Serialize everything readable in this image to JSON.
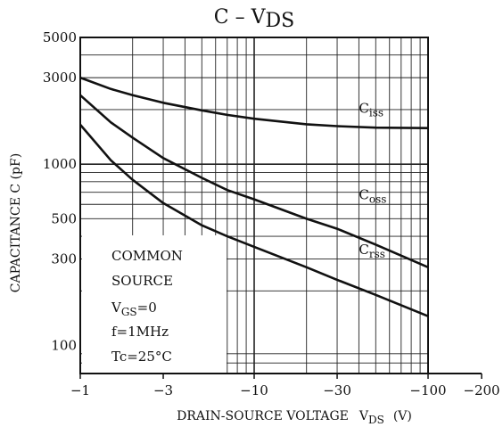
{
  "chart_data": {
    "type": "line",
    "title": "C – VDS",
    "title_main": "C",
    "title_dash": "–",
    "title_var": "V",
    "title_sub": "DS",
    "xlabel_text": "DRAIN-SOURCE VOLTAGE",
    "xlabel_var": "V",
    "xlabel_sub": "DS",
    "xlabel_unit": "(V)",
    "ylabel": "CAPACITANCE  C   (pF)",
    "x_scale": "log",
    "y_scale": "log",
    "x_quantity": "-VDS",
    "xlim": [
      1,
      200
    ],
    "ylim": [
      70,
      5000
    ],
    "x_ticks": [
      {
        "value": 1,
        "label": "−1"
      },
      {
        "value": 3,
        "label": "−3"
      },
      {
        "value": 10,
        "label": "−10"
      },
      {
        "value": 30,
        "label": "−30"
      },
      {
        "value": 100,
        "label": "−100"
      },
      {
        "value": 200,
        "label": "−200"
      }
    ],
    "y_ticks": [
      {
        "value": 100,
        "label": "100"
      },
      {
        "value": 300,
        "label": "300"
      },
      {
        "value": 500,
        "label": "500"
      },
      {
        "value": 1000,
        "label": "1000"
      },
      {
        "value": 3000,
        "label": "3000"
      },
      {
        "value": 5000,
        "label": "5000"
      }
    ],
    "grid": true,
    "series": [
      {
        "name": "Ciss",
        "label_main": "C",
        "label_sub": "iss",
        "x": [
          1,
          1.5,
          2,
          3,
          5,
          7,
          10,
          20,
          30,
          50,
          100
        ],
        "y": [
          3000,
          2600,
          2400,
          2180,
          1980,
          1870,
          1780,
          1660,
          1620,
          1590,
          1580
        ]
      },
      {
        "name": "Coss",
        "label_main": "C",
        "label_sub": "oss",
        "x": [
          1,
          1.5,
          2,
          3,
          5,
          7,
          10,
          20,
          30,
          50,
          100
        ],
        "y": [
          2400,
          1700,
          1400,
          1080,
          840,
          720,
          640,
          500,
          440,
          360,
          270
        ]
      },
      {
        "name": "Crss",
        "label_main": "C",
        "label_sub": "rss",
        "x": [
          1,
          1.5,
          2,
          3,
          5,
          7,
          10,
          20,
          30,
          50,
          100
        ],
        "y": [
          1650,
          1050,
          820,
          610,
          460,
          400,
          350,
          270,
          230,
          190,
          145
        ]
      }
    ],
    "annotation": {
      "line1": "COMMON",
      "line2": "SOURCE",
      "vgs_var": "V",
      "vgs_sub": "GS",
      "vgs_value": "=0",
      "freq": "f=1MHz",
      "temp": "Tc=25°C"
    }
  }
}
